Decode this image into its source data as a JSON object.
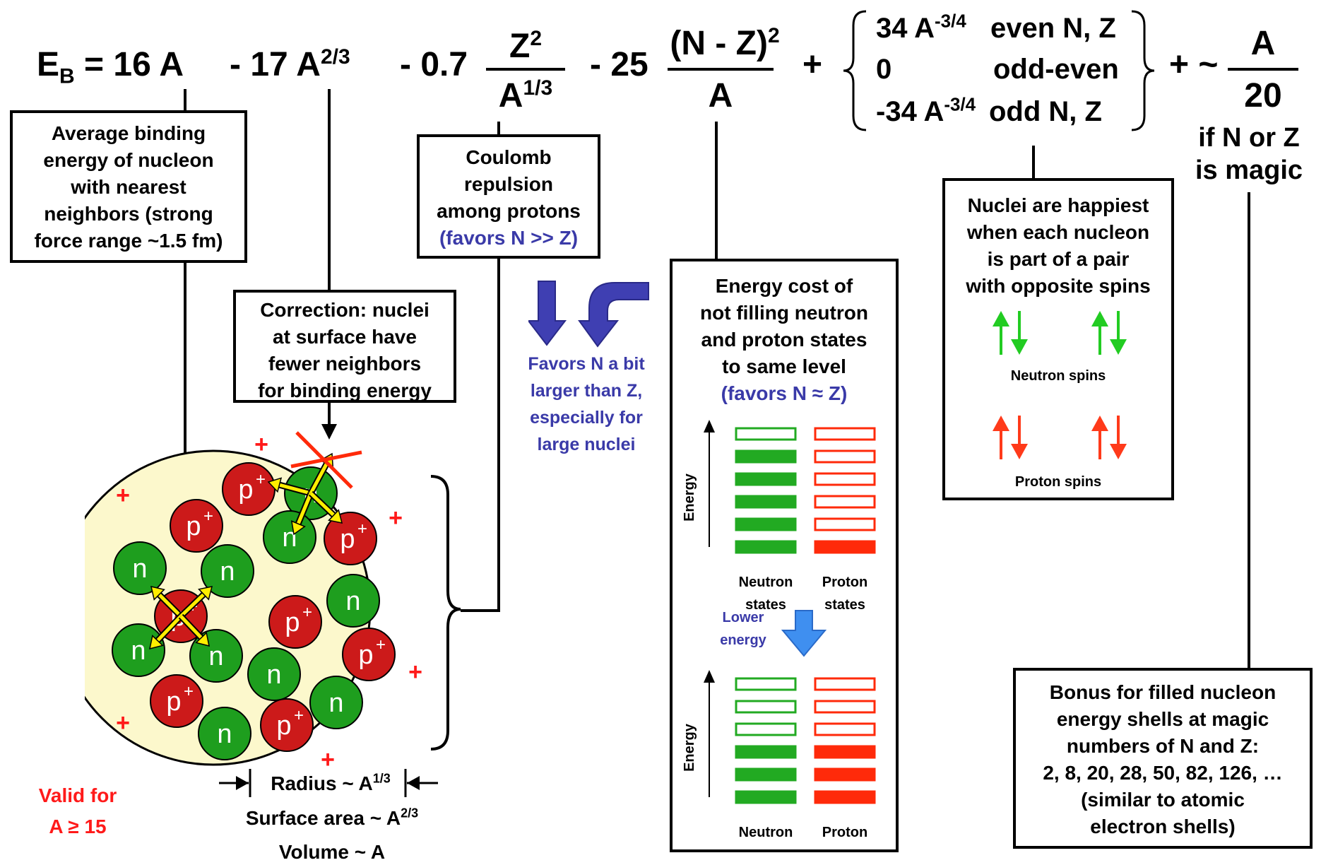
{
  "equation": {
    "eb_main": "E",
    "eb_sub": "B",
    "eq_rest": " = 16 A",
    "surface_term": "- 17 A",
    "surface_exp": "2/3",
    "coulomb_coef": "- 0.7",
    "coulomb_num": "Z",
    "coulomb_num_exp": "2",
    "coulomb_den": "A",
    "coulomb_den_exp": "1/3",
    "asym_coef": "- 25",
    "asym_num": "(N - Z)",
    "asym_num_exp": "2",
    "asym_den": "A",
    "plus1": "+",
    "pair_row1_val": "34 A",
    "pair_row1_exp": "-3/4",
    "pair_row1_cond": "even N, Z",
    "pair_row2_val": "0",
    "pair_row2_cond": "odd-even",
    "pair_row3_val": "-34 A",
    "pair_row3_exp": "-3/4",
    "pair_row3_cond": "odd N, Z",
    "plus2": "+ ~",
    "magic_num": "A",
    "magic_den": "20",
    "magic_cond_1": "if N or Z",
    "magic_cond_2": "is magic"
  },
  "boxes": {
    "volume": [
      "Average binding",
      "energy of nucleon",
      "with nearest",
      "neighbors (strong",
      "force range ~1.5 fm)"
    ],
    "surface": [
      "Correction: nuclei",
      "at surface have",
      "fewer neighbors",
      "for binding energy"
    ],
    "coulomb": [
      "Coulomb",
      "repulsion",
      "among protons"
    ],
    "coulomb_note": "(favors N >> Z)",
    "asymmetry": [
      "Energy cost of",
      "not filling neutron",
      "and proton states",
      "to same level"
    ],
    "asymmetry_note": "(favors N ≈ Z)",
    "pairing": [
      "Nuclei are happiest",
      "when each nucleon",
      "is part of a pair",
      "with opposite spins"
    ],
    "magic": [
      "Bonus for filled nucleon",
      "energy shells at magic",
      "numbers of N and Z:",
      "2, 8, 20, 28, 50, 82, 126, …",
      "(similar to atomic",
      "electron shells)"
    ]
  },
  "coulomb_side_note": [
    "Favors N a bit",
    "larger than Z,",
    "especially for",
    "large nuclei"
  ],
  "spins": {
    "neutron_label": "Neutron spins",
    "proton_label": "Proton spins",
    "neutron_color": "#22cc22",
    "proton_color": "#ff3a1a"
  },
  "levels": {
    "energy_axis": "Energy",
    "neutron_states_1": "Neutron",
    "neutron_states_2": "states",
    "proton_states_1": "Proton",
    "proton_states_2": "states",
    "lower_energy_1": "Lower",
    "lower_energy_2": "energy",
    "top_neutron_filled": 5,
    "top_proton_filled": 1,
    "bottom_neutron_filled": 3,
    "bottom_proton_filled": 3,
    "total_levels": 6
  },
  "nucleus": {
    "neutron_label": "n",
    "proton_label": "p",
    "proton_charge": "+",
    "plus_sign": "+",
    "neutron_color": "#1e9e1e",
    "proton_color": "#cc1a1a",
    "fill_color": "#fcf8cc"
  },
  "scaling": {
    "radius": "Radius ~ A",
    "radius_exp": "1/3",
    "surface": "Surface area ~ A",
    "surface_exp": "2/3",
    "volume": "Volume ~ A"
  },
  "validity": [
    "Valid for",
    "A ≥ 15"
  ]
}
